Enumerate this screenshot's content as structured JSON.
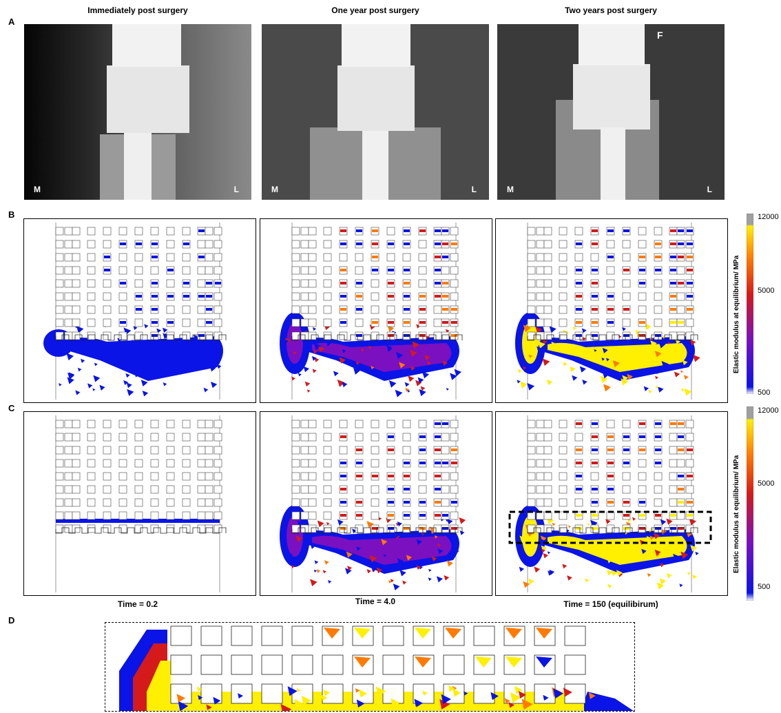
{
  "columns": [
    {
      "title": "Immediately post surgery",
      "time": "Time = 0.2"
    },
    {
      "title": "One year post surgery",
      "time": "Time = 4.0"
    },
    {
      "title": "Two years post surgery",
      "time": "Time = 150 (equilibirum)"
    }
  ],
  "panels": {
    "A": "A",
    "B": "B",
    "C": "C",
    "D": "D"
  },
  "xray_labels": {
    "medial": "M",
    "lateral": "L",
    "marker": "F"
  },
  "colorbar": {
    "title": "Elastic modulus at equilibrium/ MPa",
    "ticks": [
      "12000",
      "5000",
      "500"
    ],
    "colors": {
      "low": "#0a14e6",
      "mid": "#d41a1a",
      "high": "#ffef00",
      "max": "#a0a0a0"
    }
  }
}
